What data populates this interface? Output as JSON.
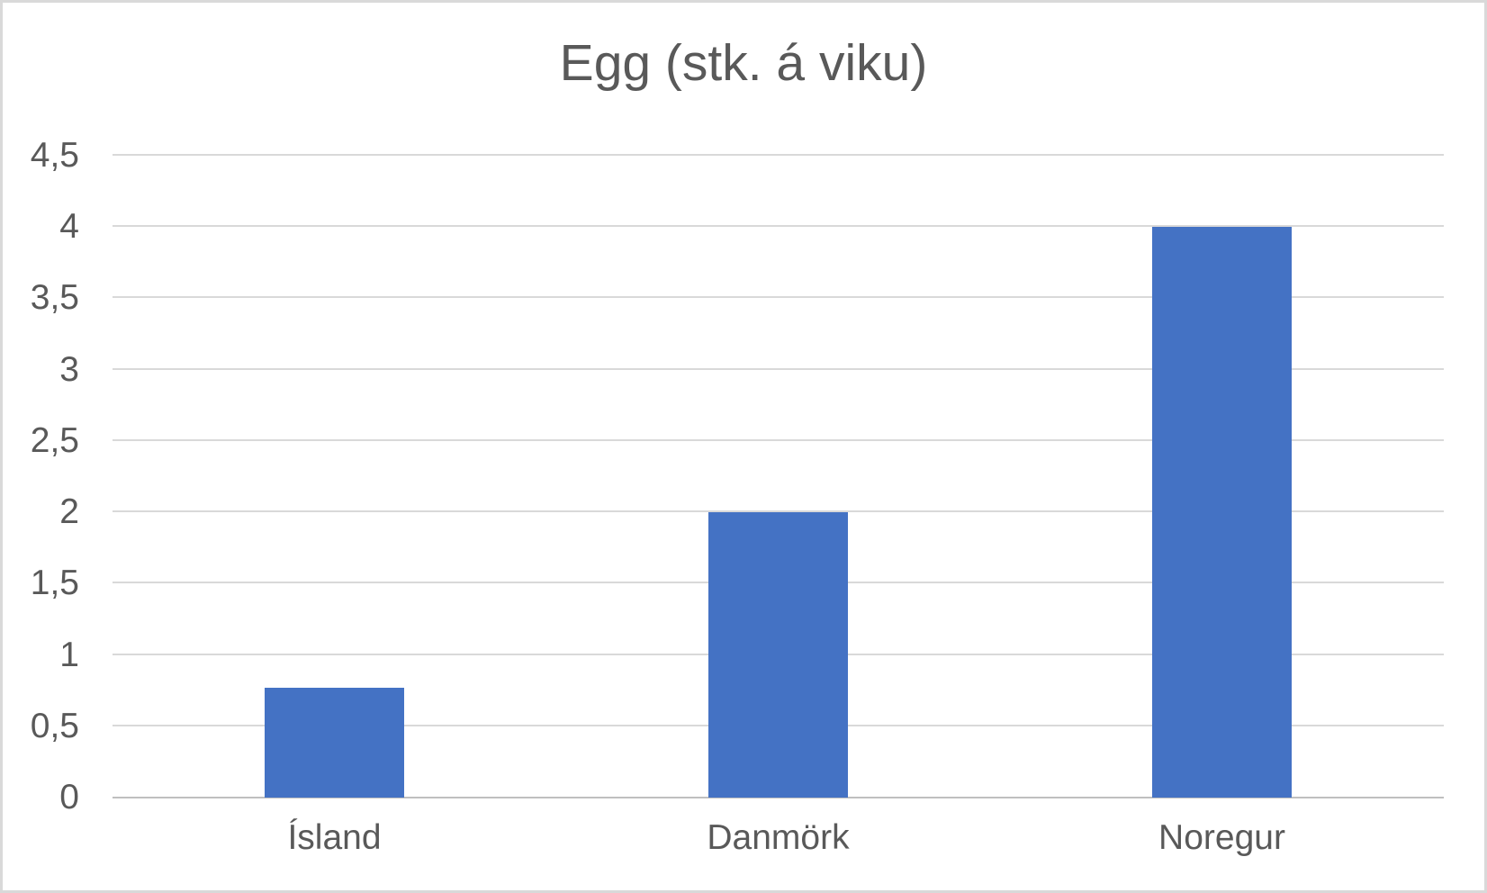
{
  "chart": {
    "colors": {
      "bar": "#4472C4",
      "gridline": "#D9D9D9",
      "axis_line": "#BFBFBF",
      "text": "#595959",
      "frame_border": "#D9D9D9",
      "background": "#FFFFFF"
    }
  },
  "chart_data": {
    "type": "bar",
    "title": "Egg (stk. á viku)",
    "categories": [
      "Ísland",
      "Danmörk",
      "Noregur"
    ],
    "values": [
      0.77,
      2,
      4
    ],
    "xlabel": "",
    "ylabel": "",
    "ylim": [
      0,
      4.5
    ],
    "ytick_step": 0.5,
    "ytick_labels": [
      "0",
      "0,5",
      "1",
      "1,5",
      "2",
      "2,5",
      "3",
      "3,5",
      "4",
      "4,5"
    ],
    "decimal_separator": ",",
    "grid": true,
    "legend_position": "none",
    "series": [
      {
        "name": "Egg (stk. á viku)",
        "values": [
          0.77,
          2,
          4
        ]
      }
    ]
  }
}
